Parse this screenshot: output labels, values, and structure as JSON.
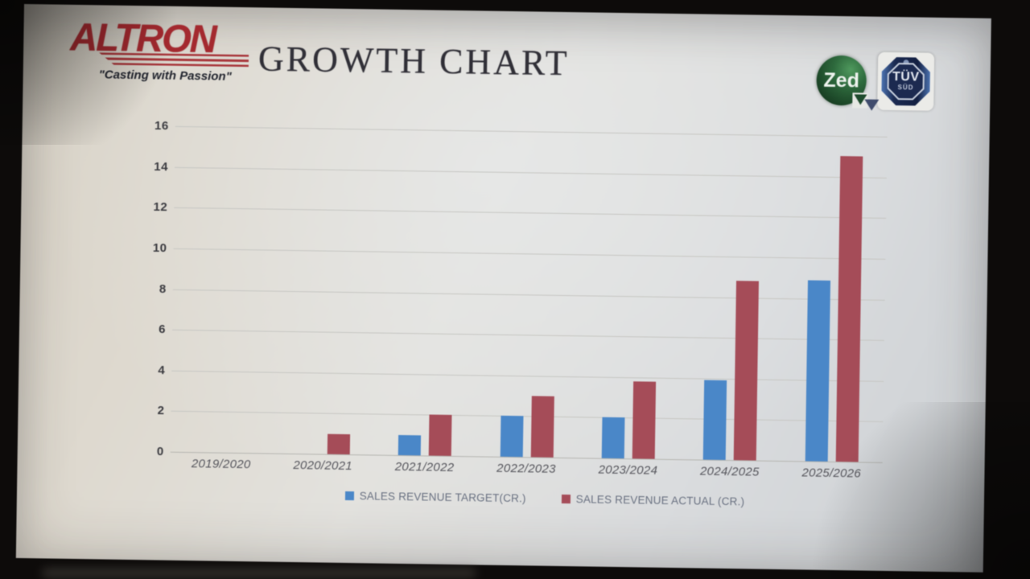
{
  "branding": {
    "logo_text": "ALTRON",
    "tagline": "\"Casting with Passion\""
  },
  "title": "GROWTH CHART",
  "badges": {
    "zed_label": "Zed",
    "tuv_label": "TÜV",
    "tuv_sub": "SÜD"
  },
  "colors": {
    "target_blue": "#4887cb",
    "actual_red": "#a84b58",
    "logo_red": "#a8282e",
    "grid": "#c6c6c2"
  },
  "chart_data": {
    "type": "bar",
    "title": "GROWTH CHART",
    "categories": [
      "2019/2020",
      "2020/2021",
      "2021/2022",
      "2022/2023",
      "2023/2024",
      "2024/2025",
      "2025/2026"
    ],
    "series": [
      {
        "name": "SALES REVENUE TARGET(CR.)",
        "color": "#4887cb",
        "values": [
          0,
          0,
          1,
          2,
          2,
          3.9,
          8.9
        ]
      },
      {
        "name": "SALES REVENUE ACTUAL (CR.)",
        "color": "#a84b58",
        "values": [
          0,
          1,
          2,
          3,
          3.8,
          8.8,
          15
        ]
      }
    ],
    "xlabel": "",
    "ylabel": "",
    "ylim": [
      0,
      16
    ],
    "yticks": [
      0,
      2,
      4,
      6,
      8,
      10,
      12,
      14,
      16
    ],
    "grid": true,
    "legend_position": "bottom"
  }
}
